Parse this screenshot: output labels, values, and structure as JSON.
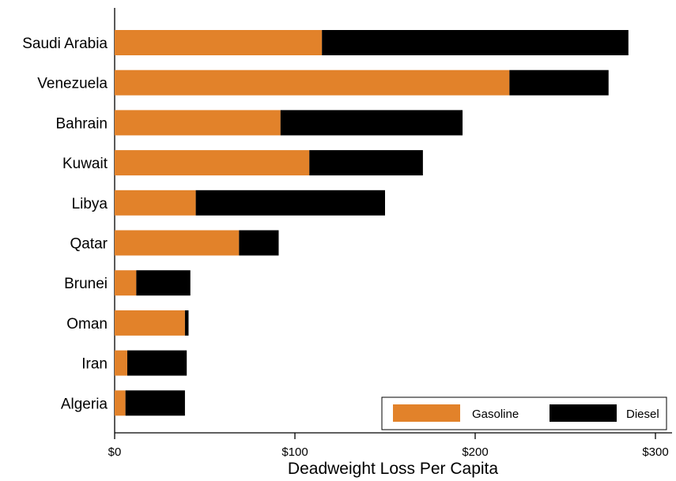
{
  "chart_data": {
    "type": "bar",
    "orientation": "horizontal",
    "stacked": true,
    "categories": [
      "Saudi Arabia",
      "Venezuela",
      "Bahrain",
      "Kuwait",
      "Libya",
      "Qatar",
      "Brunei",
      "Oman",
      "Iran",
      "Algeria"
    ],
    "series": [
      {
        "name": "Gasoline",
        "color": "#e2822a",
        "values": [
          115,
          219,
          92,
          108,
          45,
          69,
          12,
          39,
          7,
          6
        ]
      },
      {
        "name": "Diesel",
        "color": "#000000",
        "values": [
          170,
          55,
          101,
          63,
          105,
          22,
          30,
          2,
          33,
          33
        ]
      }
    ],
    "xlabel": "Deadweight Loss Per Capita",
    "xlim": [
      0,
      310
    ],
    "xticks": [
      0,
      100,
      200,
      300
    ],
    "xtick_labels": [
      "$0",
      "$100",
      "$200",
      "$300"
    ],
    "grid": false,
    "legend_position": "bottom-right"
  }
}
